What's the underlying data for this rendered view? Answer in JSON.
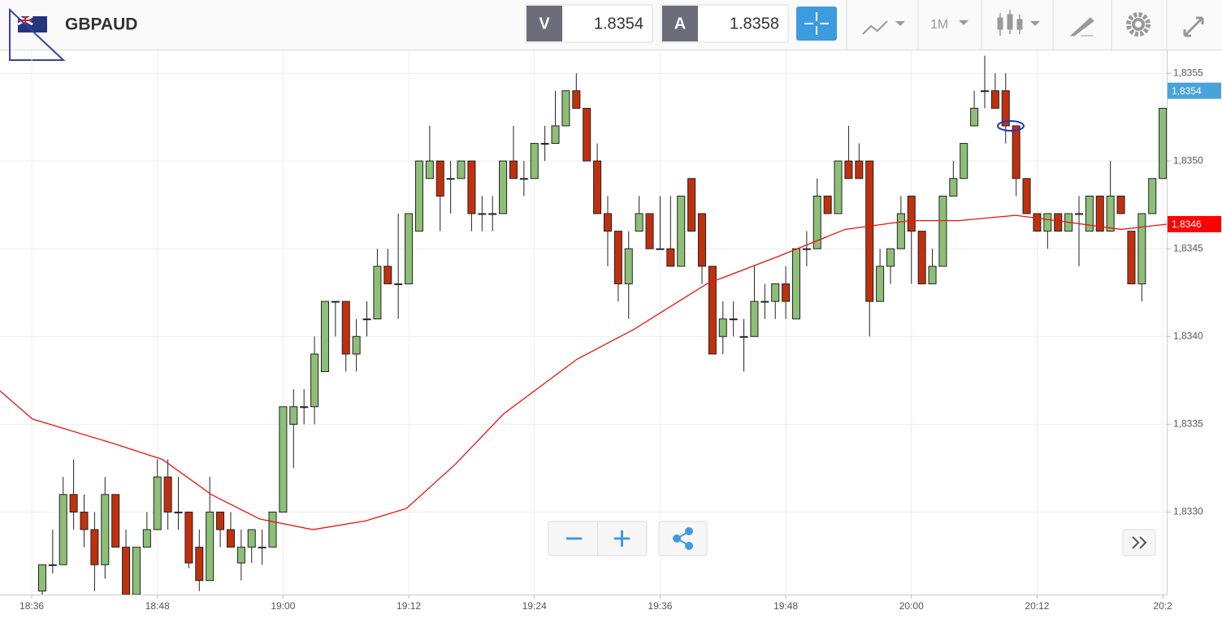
{
  "header": {
    "symbol": "GBPAUD",
    "sell_label": "V",
    "sell_price": "1.8354",
    "buy_label": "A",
    "buy_price": "1.8358",
    "timeframe": "1M"
  },
  "chart_data": {
    "type": "candlestick",
    "up_color": "#8dbf77",
    "down_color": "#c1300d",
    "grid": true,
    "xlim": [
      -4.03,
      107.38
    ],
    "ylim": [
      1.83253,
      1.83563
    ],
    "xticks": [
      {
        "value": -1,
        "label": "18:36"
      },
      {
        "value": 11,
        "label": "18:48"
      },
      {
        "value": 23,
        "label": "19:00"
      },
      {
        "value": 35,
        "label": "19:12"
      },
      {
        "value": 47,
        "label": "19:24"
      },
      {
        "value": 59,
        "label": "19:36"
      },
      {
        "value": 71,
        "label": "19:48"
      },
      {
        "value": 83,
        "label": "20:00"
      },
      {
        "value": 95,
        "label": "20:12"
      },
      {
        "value": 107,
        "label": "20:2"
      }
    ],
    "yticks": [
      {
        "value": 1.833,
        "label": "1,8330"
      },
      {
        "value": 1.8335,
        "label": "1,8335"
      },
      {
        "value": 1.834,
        "label": "1,8340"
      },
      {
        "value": 1.8345,
        "label": "1,8345"
      },
      {
        "value": 1.835,
        "label": "1,8350"
      },
      {
        "value": 1.8355,
        "label": "1,8355"
      }
    ],
    "price_tags": [
      {
        "value": 1.8354,
        "label": "1,8354",
        "color": "#4aa3d8"
      },
      {
        "value": 1.83464,
        "label": "1,8346",
        "color": "#ff0000"
      }
    ],
    "open": [
      1.83255,
      1.8327,
      1.8327,
      1.8331,
      1.833,
      1.8329,
      1.8327,
      1.8331,
      1.8328,
      1.83253,
      1.8328,
      1.8329,
      1.8332,
      1.833,
      1.833,
      1.8328,
      1.83261,
      1.833,
      1.8329,
      1.83271,
      1.8328,
      1.8328,
      1.8328,
      1.833,
      1.8335,
      1.8336,
      1.8336,
      1.8338,
      1.8342,
      1.8342,
      1.8339,
      1.8341,
      1.8341,
      1.8344,
      1.8343,
      1.8343,
      1.8346,
      1.8349,
      1.835,
      1.8349,
      1.8349,
      1.835,
      1.8347,
      1.8347,
      1.8347,
      1.835,
      1.8349,
      1.8349,
      1.8351,
      1.8351,
      1.8352,
      1.8354,
      1.8353,
      1.835,
      1.8347,
      1.8346,
      1.8343,
      1.8346,
      1.8347,
      1.8345,
      1.8345,
      1.8344,
      1.8349,
      1.8347,
      1.8344,
      1.834,
      1.8341,
      1.834,
      1.834,
      1.8342,
      1.8342,
      1.8343,
      1.8341,
      1.8345,
      1.8345,
      1.8348,
      1.8347,
      1.835,
      1.835,
      1.835,
      1.8342,
      1.8344,
      1.8345,
      1.8348,
      1.8346,
      1.8343,
      1.8344,
      1.8348,
      1.8349,
      1.8352,
      1.8354,
      1.8354,
      1.8354,
      1.8352,
      1.8349,
      1.8347,
      1.8346,
      1.8347,
      1.8346,
      1.8347,
      1.8346,
      1.8348,
      1.8346,
      1.8348,
      1.8346,
      1.8343,
      1.8347,
      1.8349
    ],
    "high": [
      1.8327,
      1.8329,
      1.8332,
      1.8333,
      1.8331,
      1.833,
      1.8332,
      1.8331,
      1.8329,
      1.8328,
      1.833,
      1.8333,
      1.8333,
      1.8332,
      1.833,
      1.8329,
      1.8332,
      1.833,
      1.833,
      1.8329,
      1.8329,
      1.8329,
      1.833,
      1.8336,
      1.8337,
      1.8337,
      1.834,
      1.8342,
      1.8342,
      1.8342,
      1.8341,
      1.8342,
      1.8345,
      1.8345,
      1.8347,
      1.8347,
      1.835,
      1.8352,
      1.835,
      1.835,
      1.835,
      1.835,
      1.8348,
      1.8348,
      1.835,
      1.8352,
      1.835,
      1.8351,
      1.8352,
      1.8354,
      1.8354,
      1.8355,
      1.8353,
      1.8351,
      1.8348,
      1.8346,
      1.8346,
      1.8348,
      1.8347,
      1.8348,
      1.8348,
      1.8348,
      1.8349,
      1.8347,
      1.8344,
      1.8342,
      1.8342,
      1.8341,
      1.8344,
      1.8343,
      1.8343,
      1.8344,
      1.8345,
      1.8346,
      1.8349,
      1.8348,
      1.835,
      1.8352,
      1.8351,
      1.835,
      1.8345,
      1.8345,
      1.8348,
      1.8348,
      1.8346,
      1.8345,
      1.8348,
      1.835,
      1.8351,
      1.8354,
      1.8356,
      1.8355,
      1.8355,
      1.8352,
      1.8349,
      1.8347,
      1.8347,
      1.8347,
      1.8347,
      1.8348,
      1.8348,
      1.8348,
      1.835,
      1.8348,
      1.8346,
      1.8347,
      1.8349,
      1.8353
    ],
    "low": [
      1.8325,
      1.83265,
      1.8327,
      1.8329,
      1.8328,
      1.83255,
      1.83262,
      1.8328,
      1.83253,
      1.83253,
      1.8328,
      1.8329,
      1.8329,
      1.8329,
      1.83268,
      1.83255,
      1.83261,
      1.8328,
      1.8328,
      1.83261,
      1.83271,
      1.8327,
      1.8328,
      1.833,
      1.83325,
      1.8335,
      1.8335,
      1.8338,
      1.834,
      1.8338,
      1.8338,
      1.834,
      1.8341,
      1.8343,
      1.8341,
      1.8343,
      1.8346,
      1.8349,
      1.8346,
      1.8347,
      1.8349,
      1.8346,
      1.8346,
      1.8346,
      1.8347,
      1.8349,
      1.8348,
      1.8349,
      1.835,
      1.8351,
      1.8352,
      1.8353,
      1.835,
      1.8347,
      1.8344,
      1.8342,
      1.8341,
      1.8346,
      1.8345,
      1.8345,
      1.8344,
      1.8344,
      1.8346,
      1.8343,
      1.8339,
      1.8339,
      1.834,
      1.8338,
      1.834,
      1.8341,
      1.8341,
      1.8341,
      1.8341,
      1.8344,
      1.8345,
      1.8347,
      1.8347,
      1.8349,
      1.8349,
      1.834,
      1.8342,
      1.8343,
      1.8345,
      1.8343,
      1.8343,
      1.8343,
      1.8344,
      1.8348,
      1.8349,
      1.8352,
      1.8353,
      1.8353,
      1.8351,
      1.8348,
      1.8347,
      1.8346,
      1.8345,
      1.8346,
      1.8346,
      1.8344,
      1.8346,
      1.8346,
      1.8346,
      1.8347,
      1.8343,
      1.8342,
      1.8347,
      1.8349
    ],
    "close": [
      1.8327,
      1.8327,
      1.8331,
      1.833,
      1.8329,
      1.8327,
      1.8331,
      1.8328,
      1.83253,
      1.8328,
      1.8329,
      1.8332,
      1.833,
      1.833,
      1.83271,
      1.83261,
      1.833,
      1.8329,
      1.8328,
      1.8328,
      1.8329,
      1.8328,
      1.833,
      1.8336,
      1.8336,
      1.8336,
      1.8339,
      1.8342,
      1.8342,
      1.8339,
      1.834,
      1.8341,
      1.8344,
      1.8343,
      1.8343,
      1.8347,
      1.835,
      1.835,
      1.8348,
      1.8349,
      1.835,
      1.8347,
      1.8347,
      1.8347,
      1.835,
      1.8349,
      1.8349,
      1.8351,
      1.8351,
      1.8352,
      1.8354,
      1.8353,
      1.835,
      1.8347,
      1.8346,
      1.8343,
      1.8345,
      1.8347,
      1.8345,
      1.8345,
      1.8344,
      1.8348,
      1.8346,
      1.8344,
      1.8339,
      1.8341,
      1.8341,
      1.834,
      1.8342,
      1.8342,
      1.8343,
      1.8342,
      1.8345,
      1.8345,
      1.8348,
      1.8347,
      1.835,
      1.8349,
      1.8349,
      1.8342,
      1.8344,
      1.8345,
      1.8347,
      1.8346,
      1.8343,
      1.8344,
      1.8348,
      1.8349,
      1.8351,
      1.8353,
      1.8354,
      1.8353,
      1.8352,
      1.8349,
      1.8347,
      1.8346,
      1.8347,
      1.8346,
      1.8347,
      1.8347,
      1.8348,
      1.8346,
      1.8348,
      1.8347,
      1.8343,
      1.8347,
      1.8349,
      1.8353
    ],
    "ma": {
      "color": "#e8140f",
      "x": [
        -4.03,
        -0.93,
        6.83,
        11.48,
        16.14,
        20.79,
        25.84,
        30.88,
        34.76,
        39.41,
        44.07,
        51.05,
        56.48,
        63.46,
        70.45,
        76.65,
        82.86,
        87.52,
        92.95,
        96.83,
        103.03,
        107.38
      ],
      "values": [
        1.83369,
        1.83353,
        1.83339,
        1.8333,
        1.8331,
        1.83296,
        1.8329,
        1.83295,
        1.83302,
        1.83327,
        1.83356,
        1.83387,
        1.83404,
        1.8343,
        1.83446,
        1.83461,
        1.83466,
        1.83466,
        1.83469,
        1.83466,
        1.83461,
        1.83464
      ]
    }
  }
}
